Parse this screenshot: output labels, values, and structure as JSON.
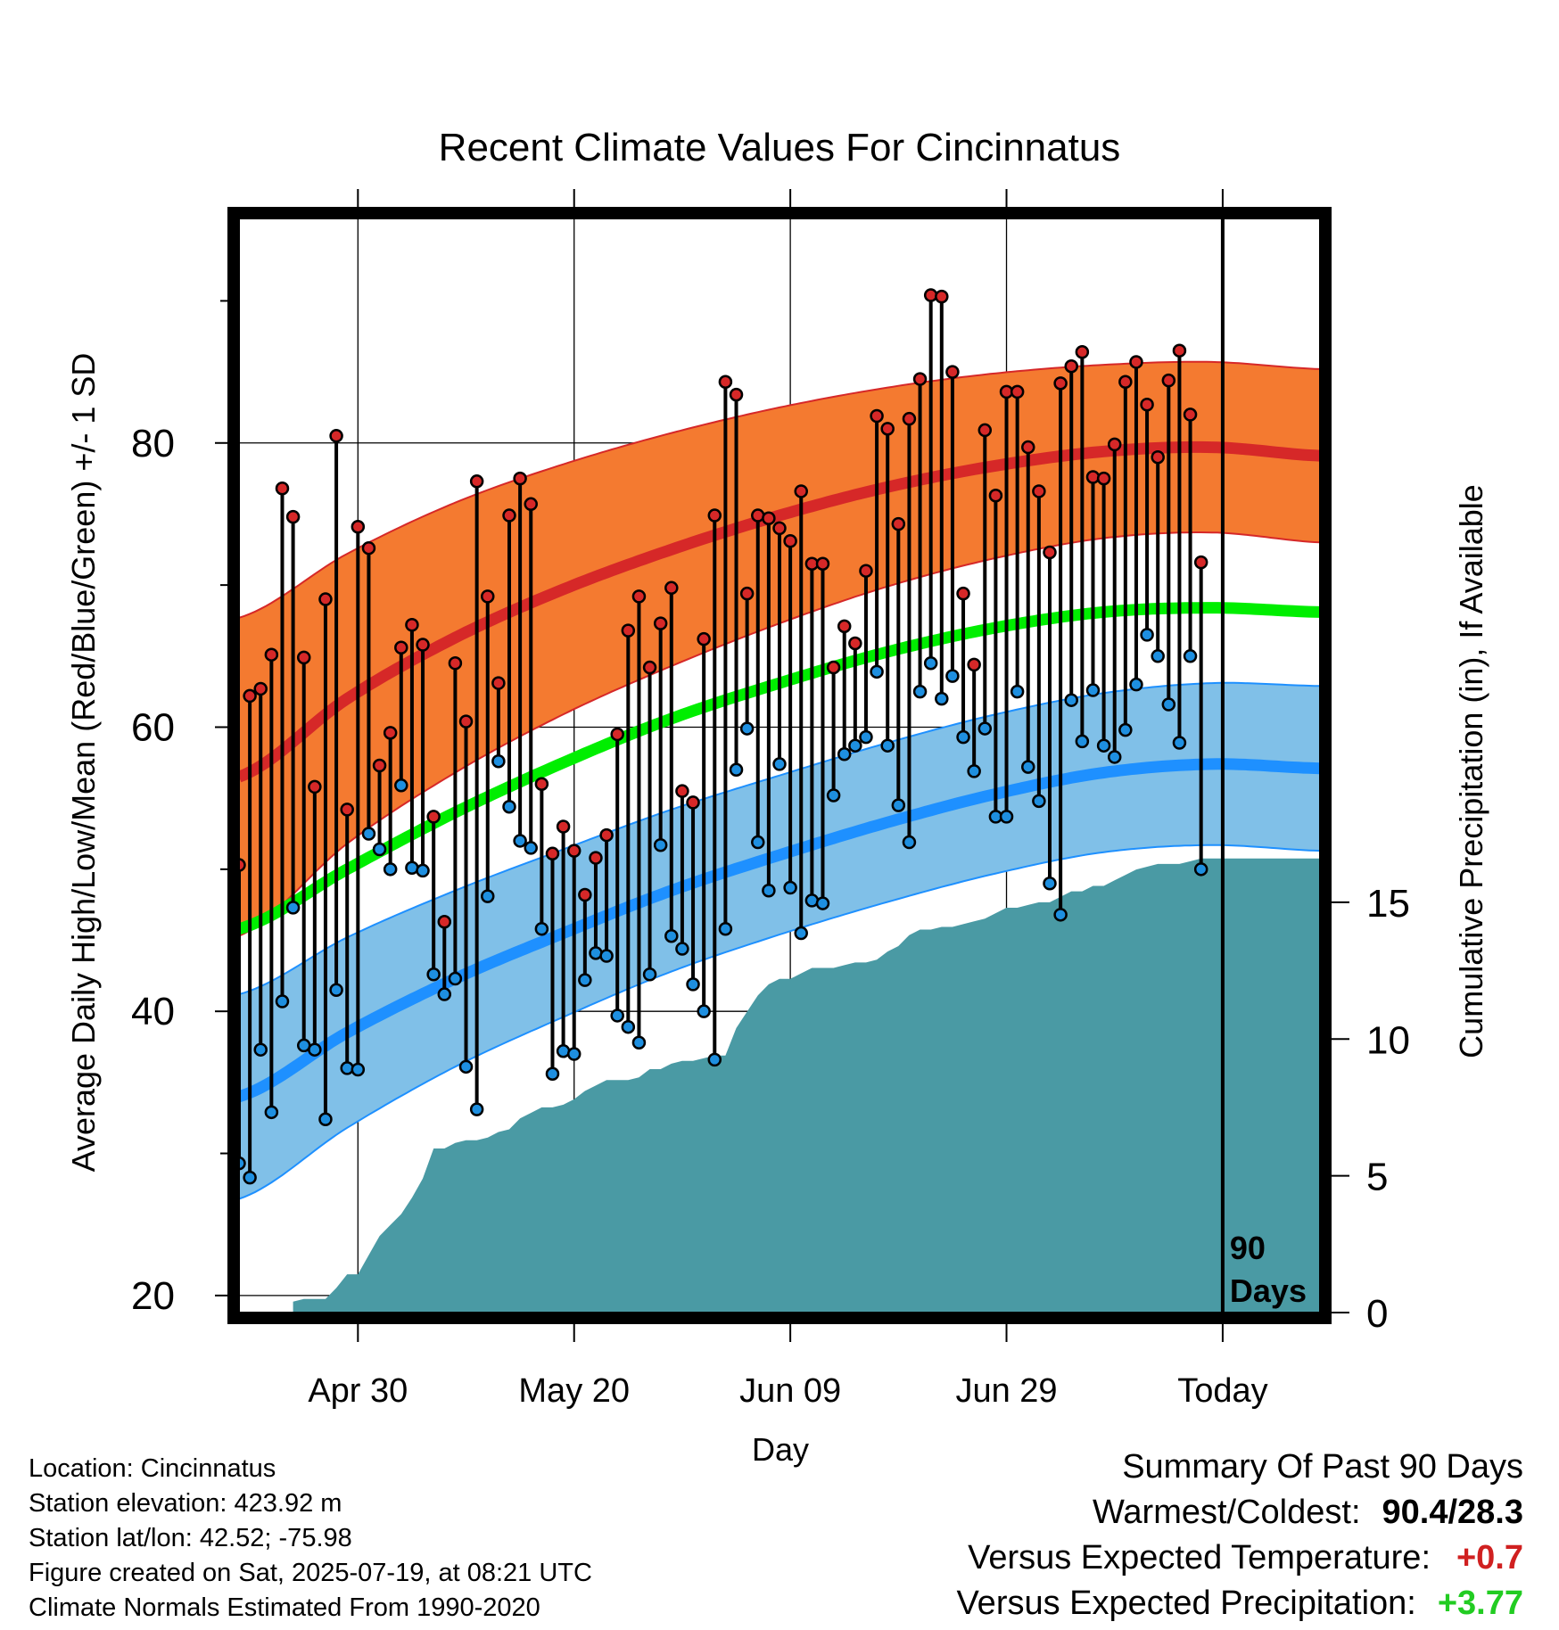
{
  "page": {
    "summary_title": "Summary Of Past 90 Days",
    "summary_rows": [
      {
        "label": "Warmest/Coldest:",
        "value": "90.4/28.3",
        "color": "#000000"
      },
      {
        "label": "Versus Expected Temperature:",
        "value": "+0.7",
        "color": "#d02020"
      },
      {
        "label": "Versus Expected Precipitation:",
        "value": "+3.77",
        "color": "#22cc22"
      }
    ],
    "info_lines": [
      "Location: Cincinnatus",
      "Station elevation: 423.92 m",
      "Station lat/lon: 42.52; -75.98",
      "Figure created on Sat, 2025-07-19, at 08:21 UTC",
      "Climate Normals Estimated From 1990-2020"
    ]
  },
  "chart_data": {
    "type": "line",
    "title": "Recent Climate Values For Cincinnatus",
    "xlabel": "Day",
    "ylabel": "Average Daily High/Low/Mean (Red/Blue/Green) +/- 1 SD",
    "y2label": "Cumulative Precipitation (in), If Available",
    "xlim": [
      1,
      101
    ],
    "ylim": [
      18.8,
      95.8
    ],
    "y2lim": [
      0,
      40
    ],
    "yticks": [
      20,
      40,
      60,
      80
    ],
    "y2ticks": [
      0,
      5,
      10,
      15
    ],
    "x_ticks": [
      {
        "x": 12,
        "label": "Apr 30"
      },
      {
        "x": 32,
        "label": "May 20"
      },
      {
        "x": 52,
        "label": "Jun 09"
      },
      {
        "x": 72,
        "label": "Jun 29"
      },
      {
        "x": 92,
        "label": "Today"
      }
    ],
    "today_x": 92,
    "today_label": [
      "90",
      "Days"
    ],
    "grid": true,
    "colors": {
      "high_band": "#f47a30",
      "high_line": "#d62828",
      "low_band": "#80c0e8",
      "low_line": "#1e90ff",
      "mean_line": "#00ee00",
      "precip": "#4a9aa4",
      "high_dot": "#d62828",
      "low_dot": "#1e8fe0"
    },
    "normals": {
      "x": [
        1,
        11,
        21,
        31,
        41,
        51,
        61,
        71,
        81,
        91,
        101
      ],
      "high": [
        56.5,
        62.0,
        66.3,
        69.7,
        72.5,
        74.9,
        76.9,
        78.4,
        79.4,
        79.7,
        79.1
      ],
      "high_sd": [
        11.2,
        10.2,
        9.5,
        8.8,
        8.2,
        7.6,
        7.0,
        6.5,
        6.1,
        6.0,
        6.1
      ],
      "low": [
        34.0,
        38.5,
        42.3,
        45.5,
        48.5,
        51.0,
        53.3,
        55.3,
        56.8,
        57.4,
        57.1
      ],
      "low_sd": [
        7.2,
        6.7,
        6.2,
        5.9,
        5.7,
        5.6,
        5.6,
        5.6,
        5.6,
        5.7,
        5.8
      ],
      "mean": [
        45.8,
        50.0,
        54.0,
        57.5,
        60.6,
        63.1,
        65.3,
        67.0,
        68.1,
        68.4,
        68.1
      ]
    },
    "obs_x": [
      1,
      2,
      3,
      4,
      5,
      6,
      7,
      8,
      9,
      10,
      11,
      12,
      13,
      14,
      15,
      16,
      17,
      18,
      19,
      20,
      21,
      22,
      23,
      24,
      25,
      26,
      27,
      28,
      29,
      30,
      31,
      32,
      33,
      34,
      35,
      36,
      37,
      38,
      39,
      40,
      41,
      42,
      43,
      44,
      45,
      46,
      47,
      48,
      49,
      50,
      51,
      52,
      53,
      54,
      55,
      56,
      57,
      58,
      59,
      60,
      61,
      62,
      63,
      64,
      65,
      66,
      67,
      68,
      69,
      70,
      71,
      72,
      73,
      74,
      75,
      76,
      77,
      78,
      79,
      80,
      81,
      82,
      83,
      84,
      85,
      86,
      87,
      88,
      89,
      90
    ],
    "obs_high": [
      50.3,
      62.2,
      62.7,
      65.1,
      76.8,
      74.8,
      64.9,
      55.8,
      69.0,
      80.5,
      54.2,
      74.1,
      72.6,
      57.3,
      59.6,
      65.6,
      67.2,
      65.8,
      53.7,
      46.3,
      64.5,
      60.4,
      77.3,
      69.2,
      63.1,
      74.9,
      77.5,
      75.7,
      56.0,
      51.1,
      53.0,
      51.3,
      48.2,
      50.8,
      52.4,
      59.5,
      66.8,
      69.2,
      64.2,
      67.3,
      69.8,
      55.5,
      54.7,
      66.2,
      74.9,
      84.3,
      83.4,
      69.4,
      74.9,
      74.7,
      74.0,
      73.1,
      76.6,
      71.5,
      71.5,
      64.2,
      67.1,
      65.9,
      71.0,
      81.9,
      81.0,
      74.3,
      81.7,
      84.5,
      90.4,
      90.3,
      85.0,
      69.4,
      64.4,
      80.9,
      76.3,
      83.6,
      83.6,
      79.7,
      76.6,
      72.3,
      84.2,
      85.4,
      86.4,
      77.6,
      77.5,
      79.9,
      84.3,
      85.7,
      82.7,
      79.0,
      84.4,
      86.5,
      82.0,
      71.6
    ],
    "obs_low": [
      29.3,
      28.3,
      37.3,
      32.9,
      40.7,
      47.3,
      37.6,
      37.3,
      32.4,
      41.5,
      36.0,
      35.9,
      52.5,
      51.4,
      50.0,
      55.9,
      50.1,
      49.9,
      42.6,
      41.2,
      42.3,
      36.1,
      33.1,
      48.1,
      57.6,
      54.4,
      52.0,
      51.5,
      45.8,
      35.6,
      37.2,
      37.0,
      42.2,
      44.1,
      43.9,
      39.7,
      38.9,
      37.8,
      42.6,
      51.7,
      45.3,
      44.4,
      41.9,
      40.0,
      36.6,
      45.8,
      57.0,
      59.9,
      51.9,
      48.5,
      57.4,
      48.7,
      45.5,
      47.8,
      47.6,
      55.2,
      58.1,
      58.7,
      59.3,
      63.9,
      58.7,
      54.5,
      51.9,
      62.5,
      64.5,
      62.0,
      63.6,
      59.3,
      56.9,
      59.9,
      53.7,
      53.7,
      62.5,
      57.2,
      54.8,
      49.0,
      46.8,
      61.9,
      59.0,
      62.6,
      58.7,
      57.9,
      59.8,
      63.0,
      66.5,
      65.0,
      61.6,
      58.9,
      65.0,
      50.0
    ],
    "precip_x": [
      6,
      7,
      9,
      10,
      11,
      12,
      13,
      14,
      15,
      16,
      17,
      18,
      19,
      20,
      21,
      22,
      23,
      24,
      25,
      26,
      27,
      28,
      29,
      30,
      31,
      32,
      33,
      34,
      35,
      36,
      37,
      38,
      39,
      40,
      41,
      42,
      43,
      44,
      45,
      46,
      47,
      48,
      49,
      50,
      51,
      52,
      53,
      54,
      55,
      56,
      57,
      58,
      59,
      60,
      61,
      62,
      63,
      64,
      65,
      66,
      67,
      68,
      69,
      70,
      71,
      72,
      73,
      74,
      75,
      76,
      77,
      78,
      79,
      80,
      81,
      82,
      83,
      84,
      85,
      86,
      87,
      88,
      89,
      90,
      91,
      92,
      101
    ],
    "precip_y": [
      0.4,
      0.5,
      0.5,
      0.9,
      1.4,
      1.4,
      2.1,
      2.8,
      3.2,
      3.6,
      4.2,
      4.9,
      6.0,
      6.0,
      6.2,
      6.3,
      6.3,
      6.4,
      6.6,
      6.7,
      7.1,
      7.3,
      7.5,
      7.5,
      7.6,
      7.8,
      8.1,
      8.3,
      8.5,
      8.5,
      8.5,
      8.6,
      8.9,
      8.9,
      9.1,
      9.2,
      9.2,
      9.3,
      9.4,
      9.4,
      10.4,
      11.0,
      11.6,
      12.0,
      12.2,
      12.2,
      12.4,
      12.6,
      12.6,
      12.6,
      12.7,
      12.8,
      12.8,
      12.9,
      13.2,
      13.4,
      13.8,
      14.0,
      14.0,
      14.1,
      14.1,
      14.2,
      14.3,
      14.4,
      14.6,
      14.8,
      14.8,
      14.9,
      15.0,
      15.0,
      15.2,
      15.4,
      15.4,
      15.6,
      15.6,
      15.8,
      16.0,
      16.2,
      16.3,
      16.4,
      16.4,
      16.4,
      16.5,
      16.6,
      16.6,
      16.6,
      16.6
    ]
  }
}
